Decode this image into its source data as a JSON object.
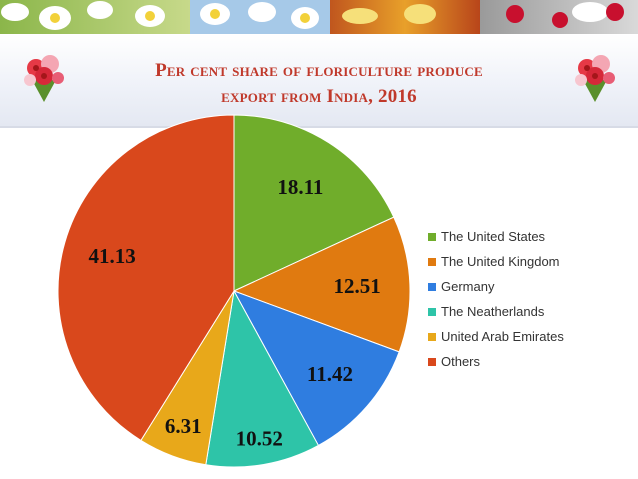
{
  "slide": {
    "title_line1": "Per cent share of floriculture produce",
    "title_line2": "export from India, 2016"
  },
  "chart_data": {
    "type": "pie",
    "title": "Per cent share of floriculture produce export from India, 2016",
    "categories": [
      "The United States",
      "The United Kingdom",
      "Germany",
      "The Neatherlands",
      "United Arab Emirates",
      "Others"
    ],
    "values": [
      18.11,
      12.51,
      11.42,
      10.52,
      6.31,
      41.13
    ],
    "labels": [
      "18.11",
      "12.51",
      "11.42",
      "10.52",
      "6.31",
      "41.13"
    ],
    "colors": [
      "#70ad2b",
      "#e07a10",
      "#2f7de0",
      "#2ec4a8",
      "#e8a81a",
      "#d9481c"
    ],
    "legend_position": "right",
    "start_angle_deg": 0,
    "direction": "clockwise"
  }
}
